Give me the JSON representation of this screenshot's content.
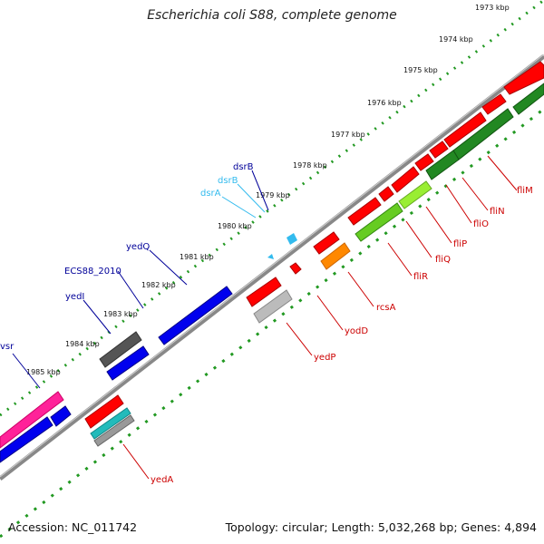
{
  "title": "Escherichia coli S88, complete genome",
  "footer": {
    "accession": "Accession: NC_011742",
    "stats": "Topology: circular; Length: 5,032,268 bp; Genes: 4,894"
  },
  "colors": {
    "forward": "#ff0000",
    "reverse": "#0000ee",
    "backbone": "#888888",
    "ticks": "#229922",
    "label_forward": "#cc0000",
    "label_reverse": "#000099",
    "label_rna": "#33bbee"
  },
  "ticks": [
    "1973 kbp",
    "1974 kbp",
    "1975 kbp",
    "1976 kbp",
    "1977 kbp",
    "1978 kbp",
    "1979 kbp",
    "1980 kbp",
    "1981 kbp",
    "1982 kbp",
    "1983 kbp",
    "1984 kbp",
    "1985 kbp"
  ],
  "genes_top": [
    {
      "label": "dsrB",
      "type": "reverse"
    },
    {
      "label": "dsrB",
      "type": "rna"
    },
    {
      "label": "dsrA",
      "type": "rna"
    },
    {
      "label": "yedQ",
      "type": "reverse"
    },
    {
      "label": "ECS88_2010",
      "type": "reverse"
    },
    {
      "label": "yedI",
      "type": "reverse"
    },
    {
      "label": "vsr",
      "type": "reverse"
    }
  ],
  "genes_bottom": [
    {
      "label": "fliM"
    },
    {
      "label": "fliN"
    },
    {
      "label": "fliO"
    },
    {
      "label": "fliP"
    },
    {
      "label": "fliQ"
    },
    {
      "label": "fliR"
    },
    {
      "label": "rcsA"
    },
    {
      "label": "yodD"
    },
    {
      "label": "yedP"
    },
    {
      "label": "yedA"
    }
  ]
}
